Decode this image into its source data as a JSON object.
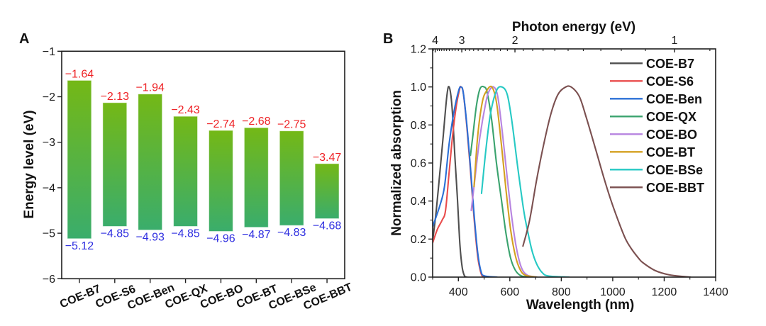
{
  "chart_data": [
    {
      "panel_label": "A",
      "type": "bar",
      "subtype": "floating-range",
      "ylabel": "Energy level (eV)",
      "ylim": [
        -6,
        -1
      ],
      "yticks": [
        {
          "value": -1,
          "label": "−1"
        },
        {
          "value": -2,
          "label": "−2"
        },
        {
          "value": -3,
          "label": "−3"
        },
        {
          "value": -4,
          "label": "−4"
        },
        {
          "value": -5,
          "label": "−5"
        },
        {
          "value": -6,
          "label": "−6"
        }
      ],
      "categories": [
        "COE-B7",
        "COE-S6",
        "COE-Ben",
        "COE-QX",
        "COE-BO",
        "COE-BT",
        "COE-BSe",
        "COE-BBT"
      ],
      "bars": [
        {
          "top": -1.64,
          "bottom": -5.12,
          "top_label": "−1.64",
          "bottom_label": "−5.12"
        },
        {
          "top": -2.13,
          "bottom": -4.85,
          "top_label": "−2.13",
          "bottom_label": "−4.85"
        },
        {
          "top": -1.94,
          "bottom": -4.93,
          "top_label": "−1.94",
          "bottom_label": "−4.93"
        },
        {
          "top": -2.43,
          "bottom": -4.85,
          "top_label": "−2.43",
          "bottom_label": "−4.85"
        },
        {
          "top": -2.74,
          "bottom": -4.96,
          "top_label": "−2.74",
          "bottom_label": "−4.96"
        },
        {
          "top": -2.68,
          "bottom": -4.87,
          "top_label": "−2.68",
          "bottom_label": "−4.87"
        },
        {
          "top": -2.75,
          "bottom": -4.83,
          "top_label": "−2.75",
          "bottom_label": "−4.83"
        },
        {
          "top": -3.47,
          "bottom": -4.68,
          "top_label": "−3.47",
          "bottom_label": "−4.68"
        }
      ],
      "colors": {
        "bar_top": "#74b816",
        "bar_bottom": "#3aad6c",
        "top_label": "#ee2226",
        "bottom_label": "#2e2ee0"
      }
    },
    {
      "panel_label": "B",
      "type": "line",
      "xlabel": "Wavelength (nm)",
      "ylabel": "Normalized absorption",
      "x2label": "Photon energy (eV)",
      "xlim": [
        300,
        1400
      ],
      "ylim": [
        0,
        1.2
      ],
      "xticks": [
        {
          "value": 400,
          "label": "400"
        },
        {
          "value": 600,
          "label": "600"
        },
        {
          "value": 800,
          "label": "800"
        },
        {
          "value": 1000,
          "label": "1000"
        },
        {
          "value": 1200,
          "label": "1200"
        },
        {
          "value": 1400,
          "label": "1400"
        }
      ],
      "x_minor_step": 100,
      "yticks": [
        {
          "value": 0.0,
          "label": "0.0"
        },
        {
          "value": 0.2,
          "label": "0.2"
        },
        {
          "value": 0.4,
          "label": "0.4"
        },
        {
          "value": 0.6,
          "label": "0.6"
        },
        {
          "value": 0.8,
          "label": "0.8"
        },
        {
          "value": 1.0,
          "label": "1.0"
        },
        {
          "value": 1.2,
          "label": "1.2"
        }
      ],
      "y_minor_step": 0.1,
      "x2ticks": [
        {
          "value": 4,
          "label": "4"
        },
        {
          "value": 3,
          "label": "3"
        },
        {
          "value": 2,
          "label": "2"
        },
        {
          "value": 1,
          "label": "1"
        }
      ],
      "x2_minor_step": 0.1,
      "grid": false,
      "legend_position": "top-right",
      "series": [
        {
          "name": "COE-B7",
          "color": "#4f4f4f",
          "points": [
            [
              300,
              0.19
            ],
            [
              314,
              0.35
            ],
            [
              328,
              0.55
            ],
            [
              341,
              0.74
            ],
            [
              355,
              0.95
            ],
            [
              364,
              1.0
            ],
            [
              375,
              0.9
            ],
            [
              387,
              0.62
            ],
            [
              396,
              0.42
            ],
            [
              406,
              0.17
            ],
            [
              415,
              0.05
            ],
            [
              424,
              0.006
            ],
            [
              433,
              0
            ]
          ]
        },
        {
          "name": "COE-S6",
          "color": "#e94c4c",
          "points": [
            [
              300,
              0.18
            ],
            [
              318,
              0.25
            ],
            [
              337,
              0.3
            ],
            [
              350,
              0.35
            ],
            [
              364,
              0.55
            ],
            [
              378,
              0.75
            ],
            [
              392,
              0.9
            ],
            [
              405,
              0.99
            ],
            [
              410,
              1.0
            ],
            [
              419,
              0.97
            ],
            [
              433,
              0.79
            ],
            [
              447,
              0.56
            ],
            [
              461,
              0.31
            ],
            [
              475,
              0.11
            ],
            [
              488,
              0.02
            ],
            [
              498,
              0
            ]
          ]
        },
        {
          "name": "COE-Ben",
          "color": "#2a6fd6",
          "points": [
            [
              300,
              0.265
            ],
            [
              328,
              0.376
            ],
            [
              346,
              0.476
            ],
            [
              364,
              0.7
            ],
            [
              383,
              0.87
            ],
            [
              401,
              0.98
            ],
            [
              410,
              1.0
            ],
            [
              419,
              0.97
            ],
            [
              433,
              0.8
            ],
            [
              447,
              0.575
            ],
            [
              461,
              0.33
            ],
            [
              475,
              0.13
            ],
            [
              488,
              0.03
            ],
            [
              502,
              0.006
            ],
            [
              550,
              0
            ]
          ]
        },
        {
          "name": "COE-QX",
          "color": "#3aa36e",
          "points": [
            [
              447,
              0.64
            ],
            [
              456,
              0.74
            ],
            [
              470,
              0.9
            ],
            [
              484,
              0.99
            ],
            [
              500,
              1.0
            ],
            [
              512,
              0.97
            ],
            [
              530,
              0.82
            ],
            [
              548,
              0.6
            ],
            [
              568,
              0.4
            ],
            [
              585,
              0.23
            ],
            [
              603,
              0.1
            ],
            [
              622,
              0.035
            ],
            [
              645,
              0.006
            ],
            [
              680,
              0
            ]
          ]
        },
        {
          "name": "COE-BO",
          "color": "#b784e0",
          "points": [
            [
              450,
              0.35
            ],
            [
              465,
              0.525
            ],
            [
              484,
              0.74
            ],
            [
              507,
              0.92
            ],
            [
              520,
              0.98
            ],
            [
              537,
              1.0
            ],
            [
              553,
              0.95
            ],
            [
              571,
              0.76
            ],
            [
              590,
              0.52
            ],
            [
              608,
              0.31
            ],
            [
              626,
              0.15
            ],
            [
              645,
              0.05
            ],
            [
              668,
              0.01
            ],
            [
              705,
              0
            ]
          ]
        },
        {
          "name": "COE-BT",
          "color": "#d4a020",
          "points": [
            [
              461,
              0.476
            ],
            [
              475,
              0.74
            ],
            [
              493,
              0.92
            ],
            [
              510,
              0.98
            ],
            [
              530,
              1.0
            ],
            [
              548,
              0.92
            ],
            [
              567,
              0.7
            ],
            [
              585,
              0.46
            ],
            [
              603,
              0.25
            ],
            [
              622,
              0.11
            ],
            [
              640,
              0.04
            ],
            [
              660,
              0.01
            ],
            [
              705,
              0
            ]
          ]
        },
        {
          "name": "COE-BSe",
          "color": "#26c9c4",
          "points": [
            [
              490,
              0.44
            ],
            [
              507,
              0.67
            ],
            [
              525,
              0.86
            ],
            [
              548,
              0.98
            ],
            [
              569,
              1.0
            ],
            [
              590,
              0.96
            ],
            [
              608,
              0.82
            ],
            [
              631,
              0.575
            ],
            [
              654,
              0.35
            ],
            [
              668,
              0.25
            ],
            [
              686,
              0.14
            ],
            [
              704,
              0.07
            ],
            [
              725,
              0.025
            ],
            [
              750,
              0.006
            ],
            [
              830,
              0
            ]
          ]
        },
        {
          "name": "COE-BBT",
          "color": "#7b5050",
          "points": [
            [
              651,
              0.163
            ],
            [
              677,
              0.3
            ],
            [
              704,
              0.51
            ],
            [
              732,
              0.7
            ],
            [
              760,
              0.86
            ],
            [
              787,
              0.96
            ],
            [
              815,
              0.998
            ],
            [
              838,
              1.0
            ],
            [
              870,
              0.95
            ],
            [
              897,
              0.84
            ],
            [
              934,
              0.67
            ],
            [
              966,
              0.52
            ],
            [
              994,
              0.4
            ],
            [
              1026,
              0.28
            ],
            [
              1050,
              0.2
            ],
            [
              1072,
              0.15
            ],
            [
              1100,
              0.1
            ],
            [
              1118,
              0.075
            ],
            [
              1164,
              0.035
            ],
            [
              1219,
              0.012
            ],
            [
              1274,
              0.003
            ],
            [
              1302,
              0
            ]
          ]
        }
      ]
    }
  ]
}
